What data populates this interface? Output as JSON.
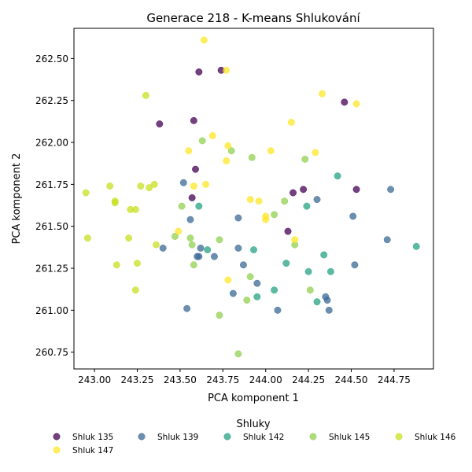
{
  "chart_data": {
    "type": "scatter",
    "title": "Generace 218 - K-means Shlukování",
    "xlabel": "PCA komponent 1",
    "ylabel": "PCA komponent 2",
    "xlim": [
      242.88,
      244.98
    ],
    "ylim": [
      260.65,
      262.68
    ],
    "xticks": [
      "243.00",
      "243.25",
      "243.50",
      "243.75",
      "244.00",
      "244.25",
      "244.50",
      "244.75"
    ],
    "yticks": [
      "260.75",
      "261.00",
      "261.25",
      "261.50",
      "261.75",
      "262.00",
      "262.25",
      "262.50"
    ],
    "grid": false,
    "legend": {
      "title": "Shluky",
      "placement": "bottom"
    },
    "series": [
      {
        "name": "Shluk 135",
        "color": "#440154",
        "points": [
          [
            243.61,
            262.42
          ],
          [
            243.74,
            262.43
          ],
          [
            244.46,
            262.24
          ],
          [
            243.38,
            262.11
          ],
          [
            243.58,
            262.13
          ],
          [
            243.59,
            261.84
          ],
          [
            244.22,
            261.72
          ],
          [
            244.16,
            261.7
          ],
          [
            244.53,
            261.72
          ],
          [
            243.57,
            261.67
          ],
          [
            244.13,
            261.47
          ]
        ]
      },
      {
        "name": "Shluk 139",
        "color": "#3b6a95",
        "points": [
          [
            243.52,
            261.76
          ],
          [
            244.73,
            261.72
          ],
          [
            244.3,
            261.66
          ],
          [
            244.51,
            261.56
          ],
          [
            243.56,
            261.54
          ],
          [
            243.84,
            261.55
          ],
          [
            244.71,
            261.42
          ],
          [
            243.4,
            261.37
          ],
          [
            243.62,
            261.37
          ],
          [
            243.84,
            261.37
          ],
          [
            243.6,
            261.32
          ],
          [
            243.61,
            261.32
          ],
          [
            243.7,
            261.32
          ],
          [
            243.87,
            261.27
          ],
          [
            244.52,
            261.27
          ],
          [
            243.95,
            261.16
          ],
          [
            243.81,
            261.1
          ],
          [
            244.35,
            261.08
          ],
          [
            244.36,
            261.06
          ],
          [
            243.54,
            261.01
          ],
          [
            244.07,
            261.0
          ],
          [
            244.37,
            261.0
          ]
        ]
      },
      {
        "name": "Shluk 142",
        "color": "#26a383",
        "points": [
          [
            244.42,
            261.8
          ],
          [
            243.61,
            261.62
          ],
          [
            244.24,
            261.62
          ],
          [
            243.66,
            261.36
          ],
          [
            243.93,
            261.36
          ],
          [
            244.34,
            261.33
          ],
          [
            244.88,
            261.38
          ],
          [
            244.12,
            261.28
          ],
          [
            244.25,
            261.23
          ],
          [
            244.38,
            261.23
          ],
          [
            244.05,
            261.12
          ],
          [
            243.95,
            261.08
          ],
          [
            244.3,
            261.05
          ]
        ]
      },
      {
        "name": "Shluk 145",
        "color": "#92d050",
        "points": [
          [
            243.63,
            262.01
          ],
          [
            243.8,
            261.95
          ],
          [
            243.92,
            261.91
          ],
          [
            244.23,
            261.9
          ],
          [
            244.05,
            261.57
          ],
          [
            244.11,
            261.65
          ],
          [
            243.51,
            261.62
          ],
          [
            243.47,
            261.44
          ],
          [
            243.56,
            261.43
          ],
          [
            243.73,
            261.42
          ],
          [
            243.57,
            261.39
          ],
          [
            244.17,
            261.39
          ],
          [
            243.58,
            261.27
          ],
          [
            243.91,
            261.2
          ],
          [
            244.26,
            261.12
          ],
          [
            243.89,
            261.06
          ],
          [
            243.73,
            260.97
          ],
          [
            243.84,
            260.74
          ]
        ]
      },
      {
        "name": "Shluk 146",
        "color": "#c8e020",
        "points": [
          [
            243.3,
            262.28
          ],
          [
            242.95,
            261.7
          ],
          [
            243.09,
            261.74
          ],
          [
            243.12,
            261.65
          ],
          [
            243.12,
            261.64
          ],
          [
            243.27,
            261.74
          ],
          [
            243.32,
            261.73
          ],
          [
            243.35,
            261.75
          ],
          [
            243.21,
            261.6
          ],
          [
            243.24,
            261.6
          ],
          [
            242.96,
            261.43
          ],
          [
            243.2,
            261.43
          ],
          [
            243.36,
            261.39
          ],
          [
            243.13,
            261.27
          ],
          [
            243.25,
            261.28
          ],
          [
            243.24,
            261.12
          ]
        ]
      },
      {
        "name": "Shluk 147",
        "color": "#fde725",
        "points": [
          [
            243.64,
            262.61
          ],
          [
            243.77,
            262.43
          ],
          [
            244.33,
            262.29
          ],
          [
            244.53,
            262.23
          ],
          [
            244.15,
            262.12
          ],
          [
            243.69,
            262.04
          ],
          [
            243.78,
            261.98
          ],
          [
            243.55,
            261.95
          ],
          [
            244.03,
            261.95
          ],
          [
            244.29,
            261.94
          ],
          [
            243.77,
            261.89
          ],
          [
            243.58,
            261.74
          ],
          [
            243.65,
            261.75
          ],
          [
            243.91,
            261.66
          ],
          [
            243.96,
            261.65
          ],
          [
            244.0,
            261.56
          ],
          [
            244.0,
            261.54
          ],
          [
            243.49,
            261.47
          ],
          [
            244.17,
            261.42
          ],
          [
            243.78,
            261.18
          ]
        ]
      }
    ]
  }
}
